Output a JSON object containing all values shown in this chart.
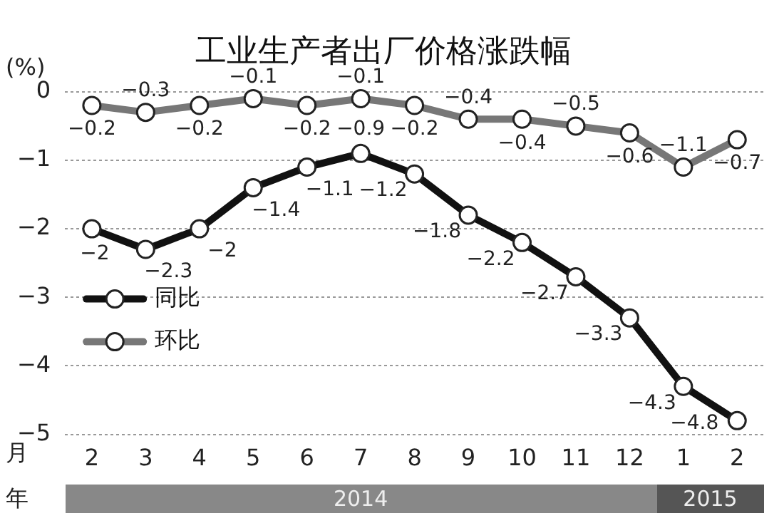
{
  "chart_data": {
    "type": "line",
    "title": "工业生产者出厂价格涨跌幅",
    "ylabel": "(%)",
    "xlabel": "月",
    "categories": [
      "2",
      "3",
      "4",
      "5",
      "6",
      "7",
      "8",
      "9",
      "10",
      "11",
      "12",
      "1",
      "2"
    ],
    "series": [
      {
        "name": "同比",
        "color": "#111111",
        "values": [
          -2,
          -2.3,
          -2,
          -1.4,
          -1.1,
          -0.9,
          -1.2,
          -1.8,
          -2.2,
          -2.7,
          -3.3,
          -4.3,
          -4.8
        ]
      },
      {
        "name": "环比",
        "color": "#777777",
        "values": [
          -0.2,
          -0.3,
          -0.2,
          -0.1,
          -0.2,
          -0.1,
          -0.2,
          -0.4,
          -0.4,
          -0.5,
          -0.6,
          -1.1,
          -0.7
        ]
      }
    ],
    "ylim": [
      -5,
      0
    ],
    "yticks": [
      0,
      -1,
      -2,
      -3,
      -4,
      -5
    ],
    "grid": "y",
    "legend": "bottom left",
    "marker": "circle",
    "line_style": "solid",
    "data_labels": true,
    "annotations": [
      "年",
      "2014",
      "2015"
    ]
  }
}
